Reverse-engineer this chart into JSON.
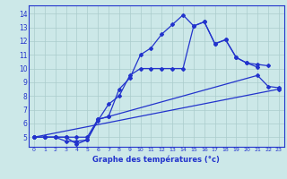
{
  "xlabel": "Graphe des températures (°c)",
  "line_color": "#2233cc",
  "bg_color": "#cce8e8",
  "ylim": [
    4.3,
    14.6
  ],
  "yticks": [
    5,
    6,
    7,
    8,
    9,
    10,
    11,
    12,
    13,
    14
  ],
  "xlim": [
    -0.5,
    23.5
  ],
  "xticks": [
    0,
    1,
    2,
    3,
    4,
    5,
    6,
    7,
    8,
    9,
    10,
    11,
    12,
    13,
    14,
    15,
    16,
    17,
    18,
    19,
    20,
    21,
    22,
    23
  ],
  "grid_color": "#aacccc",
  "line1_x": [
    0,
    1,
    2,
    3,
    4,
    5,
    6,
    7,
    8,
    9,
    10,
    11,
    12,
    13,
    14,
    15,
    16,
    17,
    18,
    19,
    20,
    21
  ],
  "line1_y": [
    5.0,
    5.0,
    5.0,
    5.0,
    4.5,
    4.8,
    6.3,
    6.5,
    8.5,
    9.3,
    11.0,
    11.5,
    12.5,
    13.2,
    13.9,
    13.1,
    13.4,
    11.8,
    12.1,
    10.8,
    10.4,
    10.1
  ],
  "line2_x": [
    0,
    1,
    2,
    3,
    4,
    5,
    6,
    7,
    8,
    9,
    10,
    11,
    12,
    13,
    14,
    15,
    16,
    17,
    18,
    19,
    20,
    21,
    22
  ],
  "line2_y": [
    5.0,
    5.0,
    5.0,
    4.7,
    4.7,
    4.8,
    6.2,
    7.4,
    8.0,
    9.5,
    10.0,
    10.0,
    10.0,
    10.0,
    10.0,
    13.1,
    13.4,
    11.8,
    12.1,
    10.8,
    10.4,
    10.3,
    10.2
  ],
  "line3_x": [
    0,
    1,
    2,
    3,
    4,
    5,
    6,
    7,
    21,
    22,
    23
  ],
  "line3_y": [
    5.0,
    5.0,
    5.0,
    5.0,
    5.0,
    5.0,
    6.3,
    6.5,
    9.5,
    8.7,
    8.6
  ],
  "line4_x": [
    0,
    23
  ],
  "line4_y": [
    5.0,
    8.5
  ]
}
